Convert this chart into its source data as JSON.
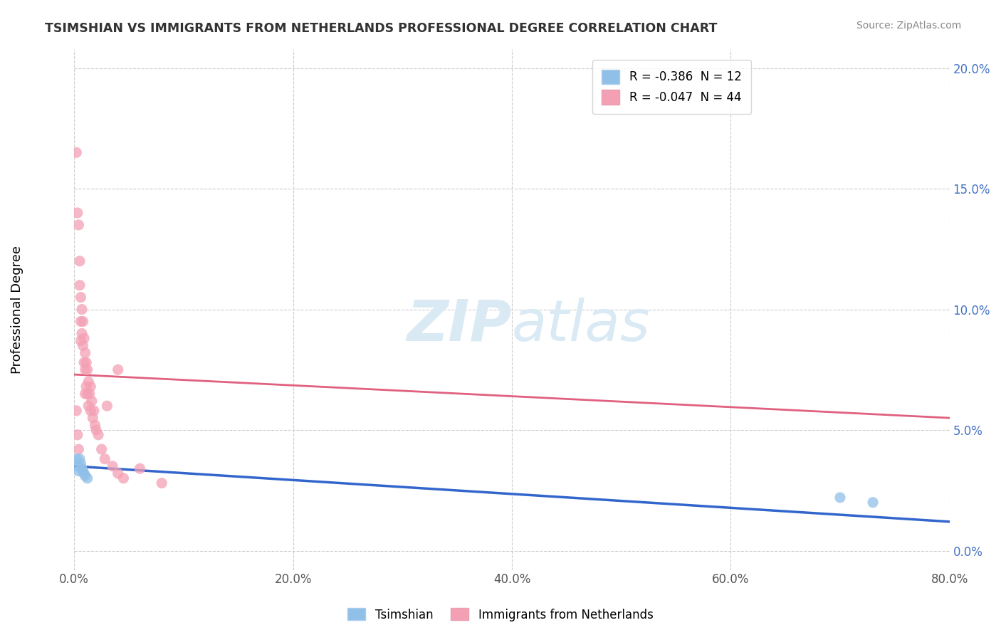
{
  "title": "TSIMSHIAN VS IMMIGRANTS FROM NETHERLANDS PROFESSIONAL DEGREE CORRELATION CHART",
  "source": "Source: ZipAtlas.com",
  "ylabel": "Professional Degree",
  "x_min": 0.0,
  "x_max": 0.8,
  "y_min": -0.008,
  "y_max": 0.208,
  "x_tick_vals": [
    0.0,
    0.2,
    0.4,
    0.6,
    0.8
  ],
  "y_tick_vals": [
    0.0,
    0.05,
    0.1,
    0.15,
    0.2
  ],
  "netherlands_color": "#f4a0b4",
  "tsimshian_color": "#90c0e8",
  "netherlands_line_color": "#e06080",
  "tsimshian_line_color": "#3366cc",
  "background_color": "#ffffff",
  "grid_color": "#cccccc",
  "watermark_color": "#daeaf5",
  "netherlands_line": [
    0.0,
    0.073,
    0.8,
    0.055
  ],
  "tsimshian_line": [
    0.0,
    0.035,
    0.8,
    0.012
  ],
  "pink_scatter_x": [
    0.002,
    0.003,
    0.004,
    0.005,
    0.005,
    0.006,
    0.006,
    0.006,
    0.007,
    0.007,
    0.008,
    0.008,
    0.009,
    0.009,
    0.01,
    0.01,
    0.01,
    0.011,
    0.011,
    0.012,
    0.012,
    0.013,
    0.013,
    0.014,
    0.015,
    0.015,
    0.016,
    0.017,
    0.018,
    0.019,
    0.02,
    0.022,
    0.025,
    0.028,
    0.03,
    0.035,
    0.04,
    0.045,
    0.06,
    0.08,
    0.002,
    0.003,
    0.004,
    0.04
  ],
  "pink_scatter_y": [
    0.165,
    0.14,
    0.135,
    0.12,
    0.11,
    0.105,
    0.095,
    0.087,
    0.1,
    0.09,
    0.095,
    0.085,
    0.088,
    0.078,
    0.082,
    0.075,
    0.065,
    0.078,
    0.068,
    0.075,
    0.065,
    0.07,
    0.06,
    0.065,
    0.068,
    0.058,
    0.062,
    0.055,
    0.058,
    0.052,
    0.05,
    0.048,
    0.042,
    0.038,
    0.06,
    0.035,
    0.032,
    0.03,
    0.034,
    0.028,
    0.058,
    0.048,
    0.042,
    0.075
  ],
  "blue_scatter_x": [
    0.002,
    0.003,
    0.004,
    0.005,
    0.006,
    0.007,
    0.008,
    0.009,
    0.01,
    0.012,
    0.7,
    0.73
  ],
  "blue_scatter_y": [
    0.038,
    0.035,
    0.033,
    0.038,
    0.036,
    0.034,
    0.033,
    0.032,
    0.031,
    0.03,
    0.022,
    0.02
  ]
}
